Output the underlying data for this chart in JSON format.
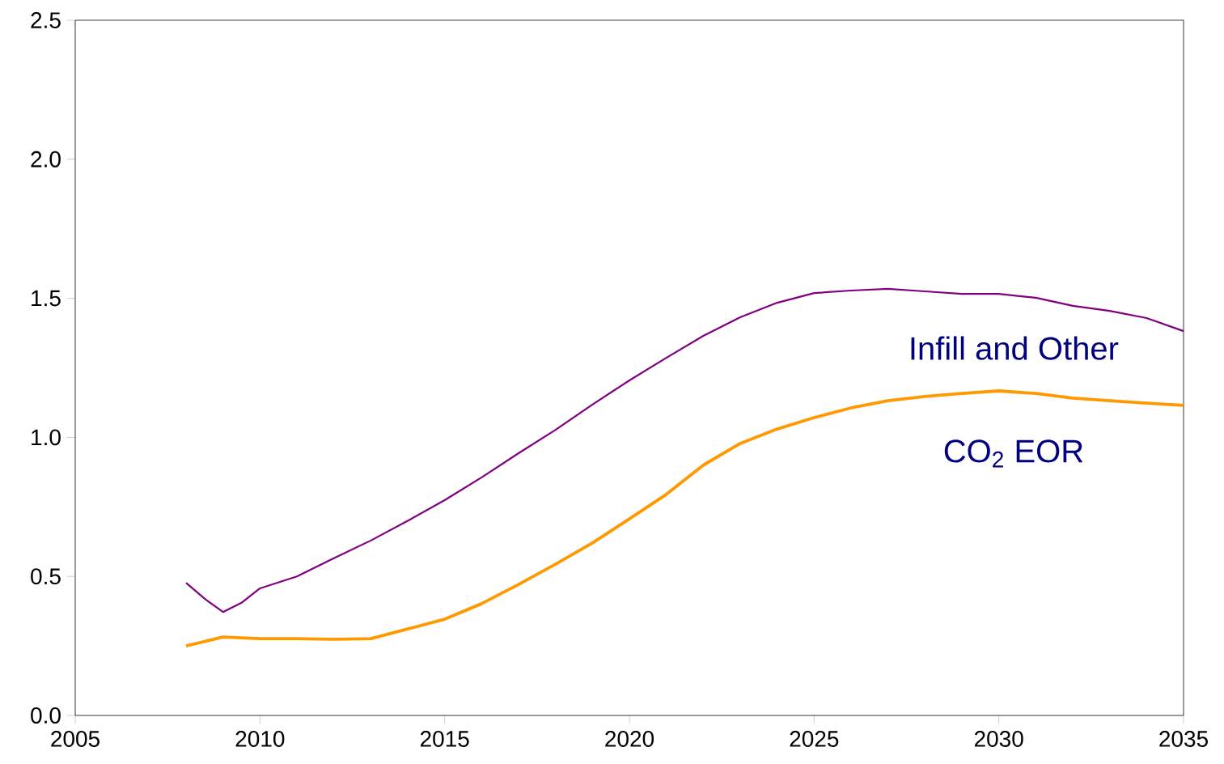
{
  "chart_data": {
    "type": "line",
    "x": [
      2008,
      2008.5,
      2009,
      2009.5,
      2010,
      2011,
      2012,
      2013,
      2014,
      2015,
      2016,
      2017,
      2018,
      2019,
      2020,
      2021,
      2022,
      2023,
      2024,
      2025,
      2026,
      2027,
      2028,
      2029,
      2030,
      2031,
      2032,
      2033,
      2034,
      2035
    ],
    "series": [
      {
        "name": "Infill and Other",
        "color": "#800080",
        "values": [
          0.477,
          0.42,
          0.372,
          0.405,
          0.457,
          0.5,
          0.565,
          0.629,
          0.7,
          0.774,
          0.856,
          0.943,
          1.027,
          1.118,
          1.205,
          1.286,
          1.365,
          1.432,
          1.484,
          1.519,
          1.528,
          1.534,
          1.525,
          1.516,
          1.516,
          1.502,
          1.473,
          1.455,
          1.429,
          1.382
        ]
      },
      {
        "name": "CO$_{2}$ EOR",
        "color": "#ff9900",
        "values": [
          0.25,
          0.266,
          0.282,
          0.279,
          0.276,
          0.276,
          0.274,
          0.276,
          0.311,
          0.346,
          0.402,
          0.471,
          0.544,
          0.62,
          0.707,
          0.795,
          0.9,
          0.978,
          1.03,
          1.071,
          1.106,
          1.132,
          1.147,
          1.158,
          1.167,
          1.158,
          1.141,
          1.132,
          1.123,
          1.115
        ]
      }
    ],
    "xlim": [
      2005,
      2035
    ],
    "xticks": [
      2005,
      2010,
      2015,
      2020,
      2025,
      2030,
      2035
    ],
    "ylim": [
      0,
      2.5
    ],
    "yticks": [
      {
        "value": 0,
        "label": "0.0"
      },
      {
        "value": 0.5,
        "label": "0.5"
      },
      {
        "value": 1,
        "label": "1.0"
      },
      {
        "value": 1.5,
        "label": "1.5"
      },
      {
        "value": 2,
        "label": "2.0"
      },
      {
        "value": 2.5,
        "label": "2.5"
      }
    ],
    "legend": false,
    "grid": false,
    "marker": "none",
    "line_style": "solid"
  }
}
